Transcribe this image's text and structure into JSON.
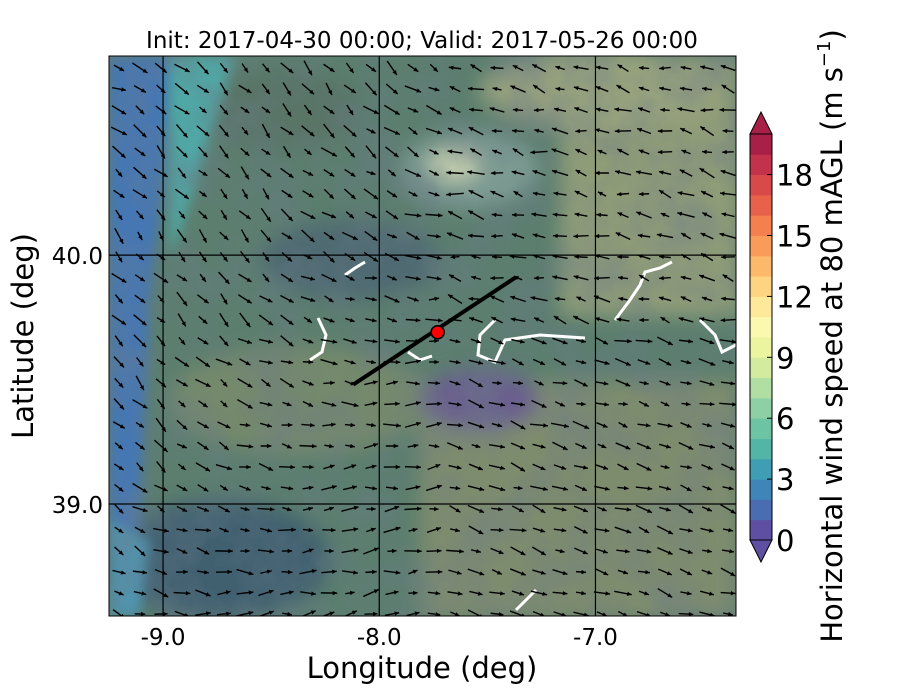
{
  "chart_data": {
    "type": "heatmap",
    "title": "Init: 2017-04-30 00:00; Valid: 2017-05-26 00:00",
    "xlabel": "Longitude (deg)",
    "ylabel": "Latitude (deg)",
    "xlim": [
      -9.25,
      -6.35
    ],
    "ylim": [
      38.55,
      40.8
    ],
    "x_ticks": [
      -9.0,
      -8.0,
      -7.0
    ],
    "x_tick_labels": [
      "-9.0",
      "-8.0",
      "-7.0"
    ],
    "y_ticks": [
      39.0,
      40.0
    ],
    "y_tick_labels": [
      "39.0",
      "40.0"
    ],
    "grid_lines": {
      "meridians": [
        -9.0,
        -8.0,
        -7.0
      ],
      "parallels": [
        39.0,
        40.0
      ]
    },
    "colorbar": {
      "label": "Horizontal wind speed at 80 mAGL (m s$^{-1}$)",
      "label_main": "Horizontal wind speed at 80 mAGL (m s",
      "label_exp": "−1",
      "label_close": ")",
      "min": 0,
      "max": 20,
      "step": 1,
      "extend": "both",
      "ticks": [
        0,
        3,
        6,
        9,
        12,
        15,
        18
      ],
      "tick_labels": [
        "0",
        "3",
        "6",
        "9",
        "12",
        "15",
        "18"
      ],
      "colors": [
        "#5e4fa2",
        "#4a6cb0",
        "#3f85b8",
        "#3f9eb4",
        "#52b5a6",
        "#6cc4a4",
        "#8ed0a4",
        "#b0dea3",
        "#d2eb9f",
        "#ebf5a0",
        "#fbf8b0",
        "#fee99a",
        "#fed382",
        "#fdb96a",
        "#fa9c59",
        "#f47f4f",
        "#e8624b",
        "#d84a4a",
        "#c2324b",
        "#a81f48"
      ]
    },
    "transect_line": {
      "start": {
        "lon": -8.12,
        "lat": 39.48
      },
      "end": {
        "lon": -7.37,
        "lat": 39.91
      },
      "color": "#000000"
    },
    "site_marker": {
      "lon": -7.73,
      "lat": 39.69,
      "color": "#ff0000"
    },
    "wind_vectors": {
      "dominant_direction": "toward east-southeast",
      "color": "#000000"
    }
  }
}
